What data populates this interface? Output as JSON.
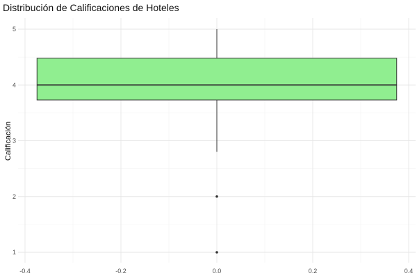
{
  "chart_data": {
    "type": "boxplot",
    "title": "Distribución de Calificaciones de Hoteles",
    "xlabel": "",
    "ylabel": "Calificación",
    "xlim": [
      -0.4,
      0.4
    ],
    "ylim": [
      1,
      5
    ],
    "x_ticks": [
      -0.4,
      -0.2,
      0.0,
      0.2,
      0.4
    ],
    "x_tick_labels": [
      "-0.4",
      "-0.2",
      "0.0",
      "0.2",
      "0.4"
    ],
    "y_ticks": [
      1,
      2,
      3,
      4,
      5
    ],
    "y_tick_labels": [
      "1",
      "2",
      "3",
      "4",
      "5"
    ],
    "grid": true,
    "box": {
      "x_center": 0.0,
      "x_min": -0.375,
      "x_max": 0.375,
      "q1": 3.73,
      "median": 4.0,
      "q3": 4.48,
      "whisker_low": 2.8,
      "whisker_high": 5.0,
      "outliers": [
        2.0,
        1.0
      ],
      "fill_color": "#90ee90",
      "line_color": "#333333"
    }
  }
}
